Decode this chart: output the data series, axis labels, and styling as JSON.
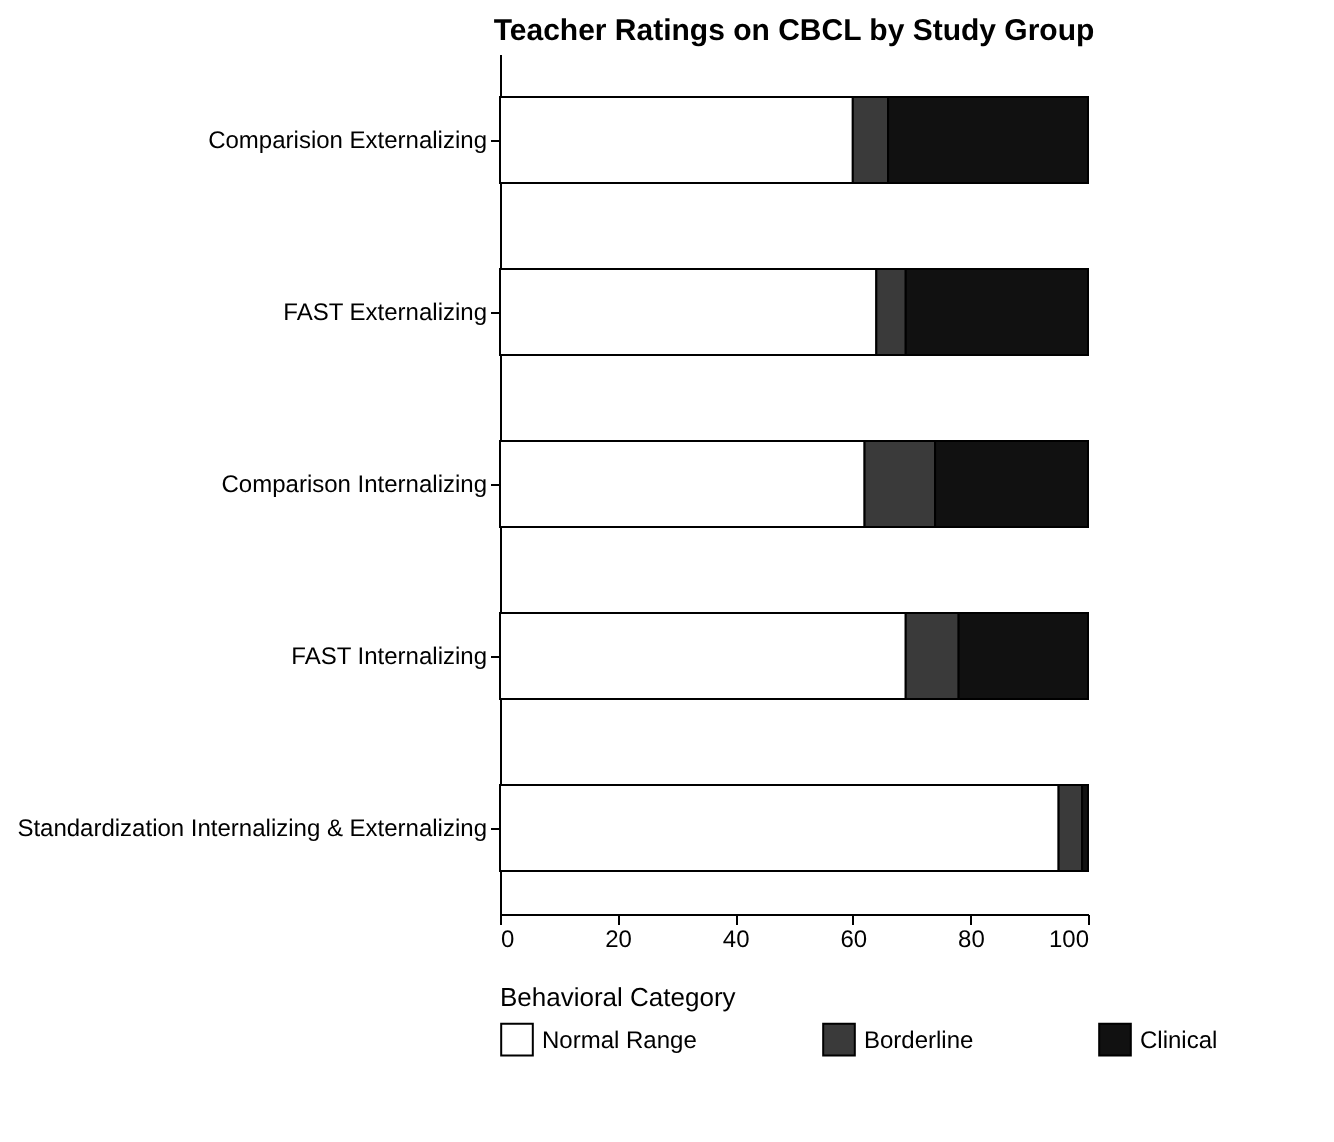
{
  "chart_data": {
    "type": "bar",
    "orientation": "horizontal",
    "stacked": true,
    "title": "Teacher Ratings on CBCL by Study Group",
    "legend_title": "Behavioral Category",
    "categories": [
      "Comparision Externalizing",
      "FAST Externalizing",
      "Comparison Internalizing",
      "FAST Internalizing",
      "Standardization Internalizing & Externalizing"
    ],
    "series": [
      {
        "name": "Normal Range",
        "color": "#ffffff",
        "values": [
          60,
          64,
          62,
          69,
          95
        ]
      },
      {
        "name": "Borderline",
        "color": "#3a3a3a",
        "values": [
          6,
          5,
          12,
          9,
          4
        ]
      },
      {
        "name": "Clinical",
        "color": "#111111",
        "values": [
          34,
          31,
          26,
          22,
          1
        ]
      }
    ],
    "xlim": [
      0,
      100
    ],
    "xticks": [
      0,
      20,
      40,
      60,
      80,
      100
    ],
    "grid": false,
    "legend": "bottom"
  }
}
